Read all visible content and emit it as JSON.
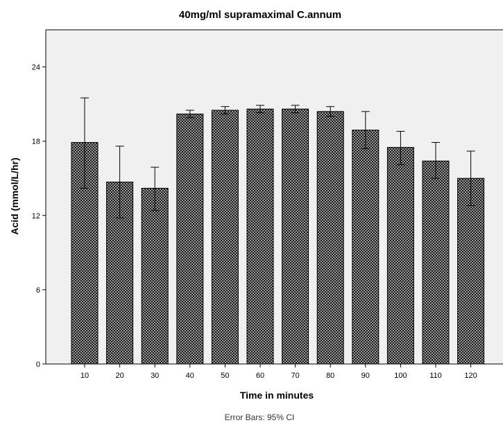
{
  "chart_data": {
    "type": "bar",
    "title": "40mg/ml supramaximal  C.annum",
    "xlabel": "Time in minutes",
    "ylabel": "Acid (mmol/L/hr)",
    "footnote": "Error Bars: 95% CI",
    "ylim": [
      0,
      27
    ],
    "yticks": [
      0,
      6,
      12,
      18,
      24
    ],
    "categories": [
      "10",
      "20",
      "30",
      "40",
      "50",
      "60",
      "70",
      "80",
      "90",
      "100",
      "110",
      "120"
    ],
    "values": [
      17.9,
      14.7,
      14.2,
      20.2,
      20.5,
      20.6,
      20.6,
      20.4,
      18.9,
      17.5,
      16.4,
      15.0
    ],
    "error_low": [
      14.2,
      11.8,
      12.4,
      19.9,
      20.2,
      20.3,
      20.3,
      20.0,
      17.4,
      16.1,
      15.0,
      12.8
    ],
    "error_high": [
      21.5,
      17.6,
      15.9,
      20.5,
      20.8,
      20.9,
      20.9,
      20.8,
      20.4,
      18.8,
      17.9,
      17.2
    ],
    "grid": false,
    "bar_pattern": "checkerboard",
    "colors": {
      "plot_background": "#f0f0f0",
      "bar_dark": "#1a1a1a",
      "bar_light": "#9a9a9a"
    }
  }
}
